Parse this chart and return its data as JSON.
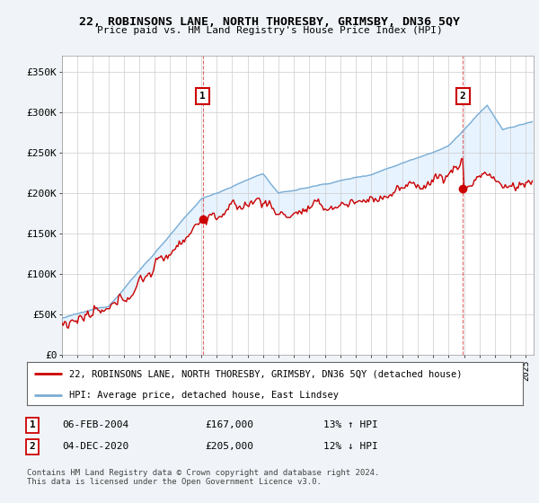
{
  "title": "22, ROBINSONS LANE, NORTH THORESBY, GRIMSBY, DN36 5QY",
  "subtitle": "Price paid vs. HM Land Registry's House Price Index (HPI)",
  "ylabel_ticks": [
    "£0",
    "£50K",
    "£100K",
    "£150K",
    "£200K",
    "£250K",
    "£300K",
    "£350K"
  ],
  "ytick_values": [
    0,
    50000,
    100000,
    150000,
    200000,
    250000,
    300000,
    350000
  ],
  "ylim": [
    0,
    370000
  ],
  "xlim_start": 1995.0,
  "xlim_end": 2025.5,
  "legend_line1": "22, ROBINSONS LANE, NORTH THORESBY, GRIMSBY, DN36 5QY (detached house)",
  "legend_line2": "HPI: Average price, detached house, East Lindsey",
  "annotation1_date": "06-FEB-2004",
  "annotation1_price": "£167,000",
  "annotation1_hpi": "13% ↑ HPI",
  "annotation2_date": "04-DEC-2020",
  "annotation2_price": "£205,000",
  "annotation2_hpi": "12% ↓ HPI",
  "red_color": "#cc0000",
  "blue_color": "#7aadd4",
  "blue_fill_color": "#ddeeff",
  "footer": "Contains HM Land Registry data © Crown copyright and database right 2024.\nThis data is licensed under the Open Government Licence v3.0.",
  "background_color": "#f0f4f8",
  "plot_bg_color": "#ffffff"
}
